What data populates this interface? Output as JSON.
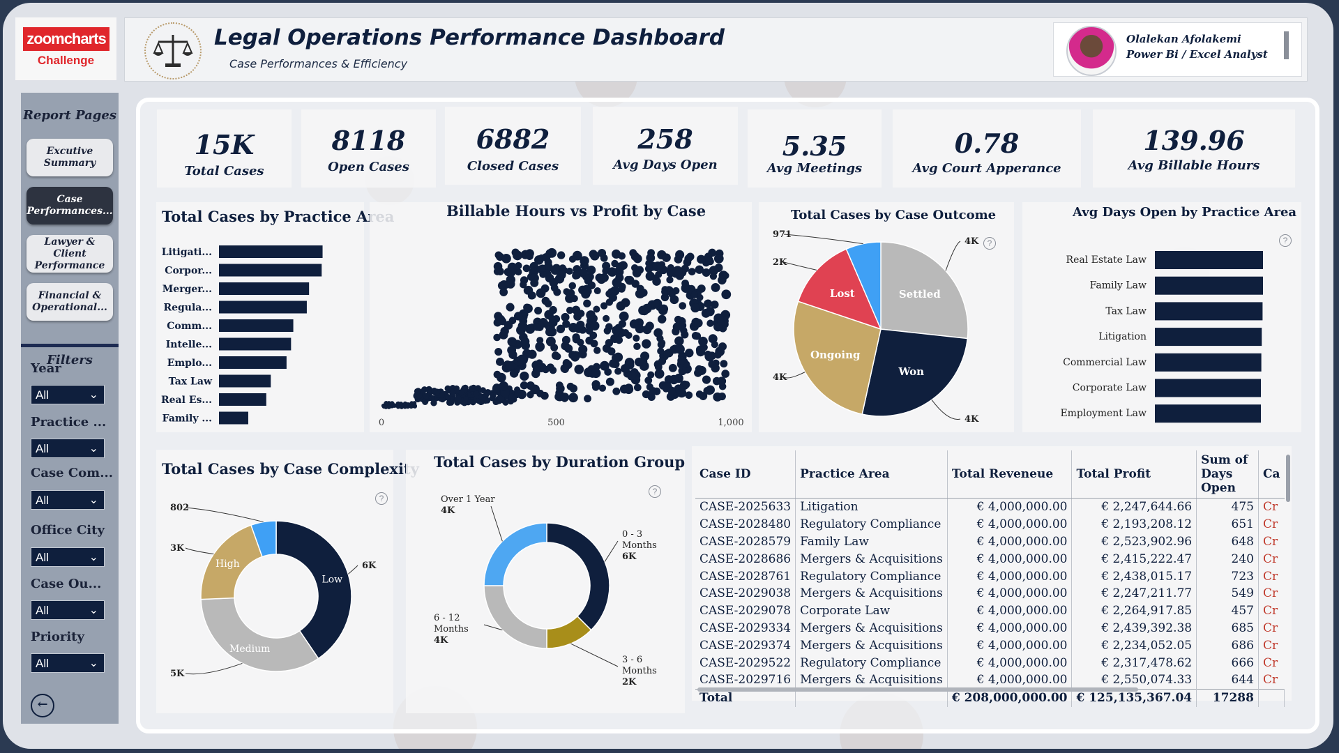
{
  "brand": {
    "logo_text": "zoomcharts",
    "challenge": "Challenge"
  },
  "header": {
    "title": "Legal Operations Performance Dashboard",
    "subtitle": "Case Performances & Efficiency"
  },
  "profile": {
    "name": "Olalekan Afolakemi",
    "role": "Power Bi / Excel Analyst"
  },
  "sidebar": {
    "title": "Report Pages",
    "pages": [
      {
        "label": "Excutive Summary",
        "active": false
      },
      {
        "label": "Case Performances...",
        "active": true
      },
      {
        "label": "Lawyer & Client Performance",
        "active": false
      },
      {
        "label": "Financial & Operational...",
        "active": false
      }
    ],
    "filters_title": "Filters",
    "filters": [
      {
        "label": "Year",
        "value": "All"
      },
      {
        "label": "Practice ...",
        "value": "All"
      },
      {
        "label": "Case Com...",
        "value": "All"
      },
      {
        "label": "Office City",
        "value": "All"
      },
      {
        "label": "Case Ou...",
        "value": "All"
      },
      {
        "label": "Priority",
        "value": "All"
      }
    ]
  },
  "kpis": [
    {
      "value": "15K",
      "label": "Total Cases"
    },
    {
      "value": "8118",
      "label": "Open Cases"
    },
    {
      "value": "6882",
      "label": "Closed Cases"
    },
    {
      "value": "258",
      "label": "Avg Days Open"
    },
    {
      "value": "5.35",
      "label": "Avg Meetings"
    },
    {
      "value": "0.78",
      "label": "Avg Court Apperance"
    },
    {
      "value": "139.96",
      "label": "Avg Billable Hours"
    }
  ],
  "colors": {
    "navy": "#0f1f3d",
    "grey": "#b9b9b9",
    "gold": "#c6a867",
    "red": "#e04252",
    "blue": "#3fa0f5",
    "olive": "#a88e1a",
    "lightblue": "#4ea7f2"
  },
  "chart_data": [
    {
      "type": "bar",
      "title": "Total Cases by Practice Area",
      "orientation": "horizontal",
      "categories": [
        "Litigati...",
        "Corpor...",
        "Merger...",
        "Regula...",
        "Comm...",
        "Intelle...",
        "Emplo...",
        "Tax Law",
        "Real Es...",
        "Family ..."
      ],
      "values": [
        2300,
        2280,
        2000,
        1950,
        1650,
        1600,
        1500,
        1150,
        1050,
        650
      ]
    },
    {
      "type": "scatter",
      "title": "Billable Hours vs Profit by Case",
      "x_ticks": [
        "0",
        "500",
        "1,000"
      ],
      "xlim": [
        0,
        1000
      ]
    },
    {
      "type": "pie",
      "title": "Total Cases by Case Outcome",
      "slices": [
        {
          "label": "Settled",
          "value": 4000,
          "value_label": "4K"
        },
        {
          "label": "Won",
          "value": 4000,
          "value_label": "4K"
        },
        {
          "label": "Ongoing",
          "value": 4000,
          "value_label": "4K"
        },
        {
          "label": "Lost",
          "value": 2000,
          "value_label": "2K"
        },
        {
          "label": "",
          "value": 971,
          "value_label": "971"
        }
      ]
    },
    {
      "type": "bar",
      "title": "Avg Days Open by Practice Area",
      "orientation": "horizontal",
      "categories": [
        "Real Estate Law",
        "Family Law",
        "Tax Law",
        "Litigation",
        "Commercial Law",
        "Corporate Law",
        "Employment Law"
      ],
      "values": [
        262,
        262,
        261,
        259,
        258,
        257,
        257
      ]
    },
    {
      "type": "pie",
      "title": "Total Cases by Case Complexity",
      "donut": true,
      "slices": [
        {
          "label": "Low",
          "value": 6000,
          "value_label": "6K"
        },
        {
          "label": "Medium",
          "value": 5000,
          "value_label": "5K"
        },
        {
          "label": "High",
          "value": 3000,
          "value_label": "3K"
        },
        {
          "label": "",
          "value": 802,
          "value_label": "802"
        }
      ]
    },
    {
      "type": "pie",
      "title": "Total Cases by Duration Group",
      "donut": true,
      "slices": [
        {
          "label": "0 - 3 Months",
          "value": 6000,
          "value_label": "6K"
        },
        {
          "label": "3 - 6 Months",
          "value": 2000,
          "value_label": "2K"
        },
        {
          "label": "6 - 12 Months",
          "value": 4000,
          "value_label": "4K"
        },
        {
          "label": "Over 1 Year",
          "value": 4000,
          "value_label": "4K"
        }
      ]
    }
  ],
  "table": {
    "columns": [
      "Case ID",
      "Practice Area",
      "Total Reveneue",
      "Total Profit",
      "Sum of Days Open",
      "Ca"
    ],
    "rows": [
      [
        "CASE-2025633",
        "Litigation",
        "€ 4,000,000.00",
        "€ 2,247,644.66",
        "475",
        "Cr"
      ],
      [
        "CASE-2028480",
        "Regulatory Compliance",
        "€ 4,000,000.00",
        "€ 2,193,208.12",
        "651",
        "Cr"
      ],
      [
        "CASE-2028579",
        "Family Law",
        "€ 4,000,000.00",
        "€ 2,523,902.96",
        "648",
        "Cr"
      ],
      [
        "CASE-2028686",
        "Mergers & Acquisitions",
        "€ 4,000,000.00",
        "€ 2,415,222.47",
        "240",
        "Cr"
      ],
      [
        "CASE-2028761",
        "Regulatory Compliance",
        "€ 4,000,000.00",
        "€ 2,438,015.17",
        "723",
        "Cr"
      ],
      [
        "CASE-2029038",
        "Mergers & Acquisitions",
        "€ 4,000,000.00",
        "€ 2,247,211.77",
        "549",
        "Cr"
      ],
      [
        "CASE-2029078",
        "Corporate Law",
        "€ 4,000,000.00",
        "€ 2,264,917.85",
        "457",
        "Cr"
      ],
      [
        "CASE-2029334",
        "Mergers & Acquisitions",
        "€ 4,000,000.00",
        "€ 2,439,392.38",
        "685",
        "Cr"
      ],
      [
        "CASE-2029374",
        "Mergers & Acquisitions",
        "€ 4,000,000.00",
        "€ 2,234,052.05",
        "686",
        "Cr"
      ],
      [
        "CASE-2029522",
        "Regulatory Compliance",
        "€ 4,000,000.00",
        "€ 2,317,478.62",
        "666",
        "Cr"
      ],
      [
        "CASE-2029716",
        "Mergers & Acquisitions",
        "€ 4,000,000.00",
        "€ 2,550,074.33",
        "644",
        "Cr"
      ]
    ],
    "total": [
      "Total",
      "",
      "€ 208,000,000.00",
      "€ 125,135,367.04",
      "17288",
      ""
    ]
  }
}
